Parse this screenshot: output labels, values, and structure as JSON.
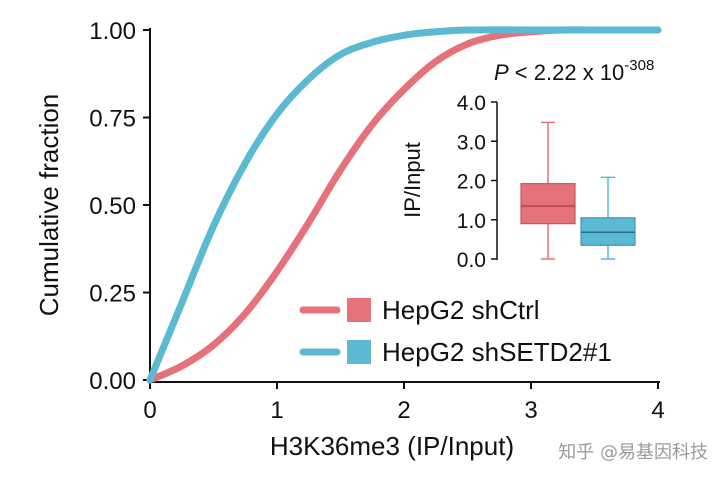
{
  "colors": {
    "shctrl": "#e5727a",
    "shsetd2": "#5bb9d2",
    "axis": "#111111",
    "watermark": "#9a9a9a"
  },
  "chart_data": [
    {
      "type": "line",
      "title": "",
      "xlabel": "H3K36me3 (IP/Input)",
      "ylabel": "Cumulative fraction",
      "xlim": [
        0,
        4
      ],
      "ylim": [
        0,
        1
      ],
      "x_ticks": [
        "0",
        "1",
        "2",
        "3",
        "4"
      ],
      "y_ticks": [
        "0.00",
        "0.25",
        "0.50",
        "0.75",
        "1.00"
      ],
      "series": [
        {
          "name": "HepG2 shCtrl",
          "color": "#e5727a",
          "x": [
            0,
            0.25,
            0.5,
            0.75,
            1.0,
            1.25,
            1.5,
            1.75,
            2.0,
            2.25,
            2.5,
            2.75,
            3.0,
            3.25,
            3.5,
            4.0
          ],
          "y": [
            0.0,
            0.04,
            0.1,
            0.19,
            0.31,
            0.45,
            0.6,
            0.73,
            0.83,
            0.91,
            0.96,
            0.985,
            0.995,
            1.0,
            1.0,
            1.0
          ]
        },
        {
          "name": "HepG2 shSETD2#1",
          "color": "#5bb9d2",
          "x": [
            0,
            0.25,
            0.5,
            0.75,
            1.0,
            1.25,
            1.5,
            1.75,
            2.0,
            2.25,
            2.5,
            3.0,
            3.5,
            4.0
          ],
          "y": [
            0.0,
            0.22,
            0.44,
            0.62,
            0.76,
            0.86,
            0.93,
            0.965,
            0.985,
            0.995,
            1.0,
            1.0,
            1.0,
            1.0
          ]
        }
      ],
      "legend": {
        "placement": "bottom-right"
      }
    },
    {
      "type": "box",
      "title": "",
      "ylabel": "IP/Input",
      "ylim": [
        0,
        4
      ],
      "y_ticks": [
        "0.0",
        "1.0",
        "2.0",
        "3.0",
        "4.0"
      ],
      "annotation": {
        "p_prefix": "P",
        "p_text": " < 2.22 x 10",
        "p_exponent": "-308"
      },
      "boxes": [
        {
          "name": "HepG2 shCtrl",
          "color": "#e5727a",
          "min": 0.0,
          "q1": 0.9,
          "median": 1.35,
          "q3": 1.92,
          "max": 3.48
        },
        {
          "name": "HepG2 shSETD2#1",
          "color": "#5bb9d2",
          "min": 0.0,
          "q1": 0.35,
          "median": 0.68,
          "q3": 1.05,
          "max": 2.08
        }
      ]
    }
  ],
  "watermark": "知乎 @易基因科技"
}
